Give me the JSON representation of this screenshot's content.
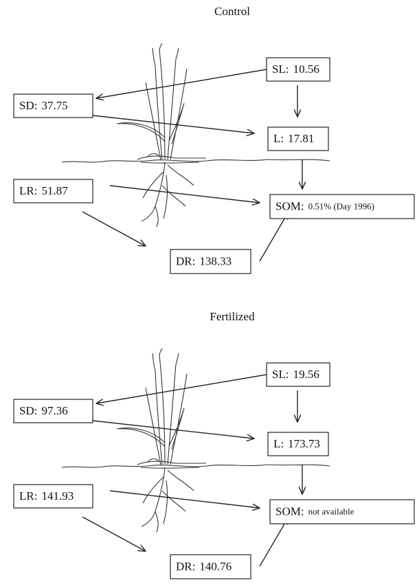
{
  "panels": [
    {
      "title": "Control",
      "boxes": [
        {
          "label": "SL:",
          "value": "10.56"
        },
        {
          "label": "SD:",
          "value": "37.75"
        },
        {
          "label": "L:",
          "value": "17.81"
        },
        {
          "label": "LR:",
          "value": "51.87"
        },
        {
          "label": "SOM:",
          "value": "0.51% (Day 1996)"
        },
        {
          "label": "DR:",
          "value": "138.33"
        }
      ]
    },
    {
      "title": "Fertilized",
      "boxes": [
        {
          "label": "SL:",
          "value": "19.56"
        },
        {
          "label": "SD:",
          "value": "97.36"
        },
        {
          "label": "L:",
          "value": "173.73"
        },
        {
          "label": "LR:",
          "value": "141.93"
        },
        {
          "label": "SOM:",
          "value": "not available"
        },
        {
          "label": "DR:",
          "value": "140.76"
        }
      ]
    }
  ]
}
